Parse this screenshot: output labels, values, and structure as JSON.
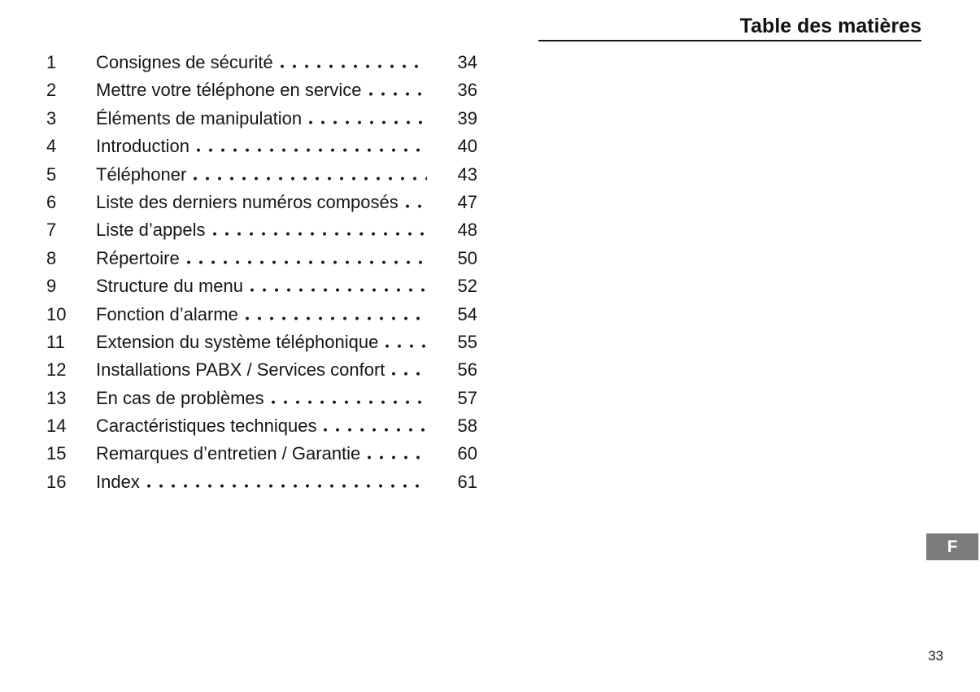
{
  "header": {
    "title": "Table des matières"
  },
  "toc": {
    "rows": [
      {
        "num": "1",
        "title": "Consignes de sécurité",
        "page": "34"
      },
      {
        "num": "2",
        "title": "Mettre votre téléphone en service",
        "page": "36"
      },
      {
        "num": "3",
        "title": "Éléments de manipulation",
        "page": "39"
      },
      {
        "num": "4",
        "title": "Introduction",
        "page": "40"
      },
      {
        "num": "5",
        "title": "Téléphoner",
        "page": "43"
      },
      {
        "num": "6",
        "title": "Liste des derniers numéros composés",
        "page": "47"
      },
      {
        "num": "7",
        "title": "Liste d’appels",
        "page": "48"
      },
      {
        "num": "8",
        "title": "Répertoire",
        "page": "50"
      },
      {
        "num": "9",
        "title": "Structure du menu",
        "page": "52"
      },
      {
        "num": "10",
        "title": "Fonction d’alarme",
        "page": "54"
      },
      {
        "num": "11",
        "title": "Extension du système téléphonique",
        "page": "55"
      },
      {
        "num": "12",
        "title": "Installations PABX / Services confort",
        "page": "56"
      },
      {
        "num": "13",
        "title": "En cas de problèmes",
        "page": "57"
      },
      {
        "num": "14",
        "title": "Caractéristiques techniques",
        "page": "58"
      },
      {
        "num": "15",
        "title": "Remarques d’entretien / Garantie",
        "page": "60"
      },
      {
        "num": "16",
        "title": "Index",
        "page": "61"
      }
    ]
  },
  "language_tab": {
    "label": "F"
  },
  "footer": {
    "page_number": "33"
  },
  "colors": {
    "background": "#ffffff",
    "text": "#161616",
    "rule": "#151515",
    "tab_background": "#7b7b7b",
    "tab_text": "#ffffff"
  }
}
